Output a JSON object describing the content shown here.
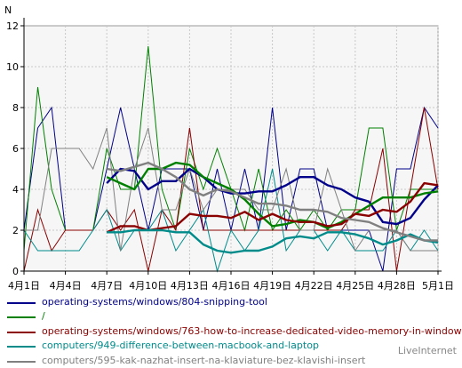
{
  "chart_data": {
    "type": "line",
    "ylabel": "N",
    "ylim": [
      0,
      12
    ],
    "yticks": [
      0,
      2,
      4,
      6,
      8,
      10,
      12
    ],
    "x": [
      "4月1日",
      "4月2日",
      "4月3日",
      "4月4日",
      "4月5日",
      "4月6日",
      "4月7日",
      "4月8日",
      "4月9日",
      "4月10日",
      "4月11日",
      "4月12日",
      "4月13日",
      "4月14日",
      "4月15日",
      "4月16日",
      "4月17日",
      "4月18日",
      "4月19日",
      "4月20日",
      "4月21日",
      "4月22日",
      "4月23日",
      "4月24日",
      "4月25日",
      "4月26日",
      "4月27日",
      "4月28日",
      "4月29日",
      "4月30日",
      "5月1日"
    ],
    "xtick_labels": [
      "4月1日",
      "4月4日",
      "4月7日",
      "4月10日",
      "4月13日",
      "4月16日",
      "4月19日",
      "4月22日",
      "4月25日",
      "4月28日",
      "5月1日"
    ],
    "grid": true,
    "legend_position": "bottom",
    "series": [
      {
        "name": "operating-systems/windows/804-snipping-tool",
        "color": "#00008b",
        "values": [
          2,
          7,
          8,
          2,
          2,
          2,
          5,
          8,
          5,
          2,
          5,
          5,
          5,
          2,
          5,
          2,
          5,
          2,
          8,
          2,
          5,
          5,
          2,
          2,
          2,
          2,
          0,
          5,
          5,
          8,
          7
        ],
        "trend": [
          null,
          null,
          null,
          null,
          null,
          null,
          4.3,
          5.0,
          4.9,
          4.0,
          4.4,
          4.4,
          5.0,
          4.6,
          4.0,
          3.8,
          3.8,
          3.9,
          3.9,
          4.2,
          4.6,
          4.6,
          4.2,
          4.0,
          3.6,
          3.4,
          2.4,
          2.3,
          2.6,
          3.5,
          4.2
        ]
      },
      {
        "name": "/",
        "color": "#008000",
        "values": [
          1,
          9,
          4,
          2,
          2,
          2,
          6,
          4,
          4,
          11,
          4,
          2,
          6,
          4,
          6,
          4,
          2,
          5,
          2,
          3,
          2,
          3,
          2,
          3,
          3,
          7,
          7,
          2,
          4,
          4,
          4
        ],
        "trend": [
          null,
          null,
          null,
          null,
          null,
          null,
          4.6,
          4.3,
          4.0,
          5.0,
          5.0,
          5.3,
          5.2,
          4.6,
          4.3,
          4.0,
          3.5,
          2.8,
          2.2,
          2.3,
          2.5,
          2.4,
          2.1,
          2.4,
          2.8,
          3.2,
          3.6,
          3.6,
          3.6,
          3.8,
          3.9
        ]
      },
      {
        "name": "operating-systems/windows/763-how-to-increase-dedicated-video-memory-in-windows",
        "color": "#8b0000",
        "values": [
          0,
          3,
          1,
          2,
          2,
          2,
          3,
          2,
          3,
          0,
          3,
          2,
          7,
          2,
          2,
          2,
          2,
          2,
          2,
          2,
          2,
          2,
          2,
          2,
          3,
          3,
          6,
          0,
          4,
          8,
          4
        ],
        "trend": [
          null,
          null,
          null,
          null,
          null,
          null,
          1.9,
          2.2,
          2.2,
          2.0,
          2.1,
          2.2,
          2.8,
          2.7,
          2.7,
          2.6,
          2.9,
          2.5,
          2.8,
          2.5,
          2.4,
          2.4,
          2.2,
          2.3,
          2.8,
          2.7,
          3.0,
          2.9,
          3.4,
          4.3,
          4.2
        ]
      },
      {
        "name": "computers/949-difference-between-macbook-and-laptop",
        "color": "#008b8b",
        "values": [
          2,
          1,
          1,
          1,
          1,
          2,
          3,
          1,
          2,
          2,
          3,
          1,
          2,
          3,
          0,
          2,
          1,
          2,
          5,
          1,
          2,
          2,
          1,
          2,
          1,
          1,
          1,
          2,
          1,
          2,
          1
        ],
        "trend": [
          null,
          null,
          null,
          null,
          null,
          null,
          1.9,
          1.9,
          2.0,
          2.0,
          2.0,
          1.9,
          1.9,
          1.3,
          1.0,
          0.9,
          1.0,
          1.0,
          1.2,
          1.6,
          1.7,
          1.6,
          1.9,
          1.9,
          1.8,
          1.6,
          1.3,
          1.5,
          1.8,
          1.5,
          1.4
        ]
      },
      {
        "name": "computers/595-kak-nazhat-insert-na-klaviature-bez-klavishi-insert",
        "color": "#808080",
        "values": [
          2,
          2,
          6,
          6,
          6,
          5,
          7,
          1,
          5,
          7,
          3,
          3,
          5,
          3,
          4,
          4,
          4,
          3,
          3,
          5,
          2,
          2,
          5,
          3,
          1,
          2,
          2,
          2,
          1,
          1,
          1
        ],
        "trend": [
          null,
          null,
          null,
          null,
          null,
          null,
          5.0,
          4.9,
          5.1,
          5.3,
          5.0,
          4.6,
          4.0,
          3.7,
          4.0,
          3.9,
          3.6,
          3.3,
          3.3,
          3.2,
          3.0,
          3.0,
          2.9,
          2.6,
          2.5,
          2.4,
          2.1,
          1.9,
          1.7,
          1.5,
          1.5
        ]
      }
    ]
  },
  "footer": {
    "brand": "LiveInternet"
  }
}
